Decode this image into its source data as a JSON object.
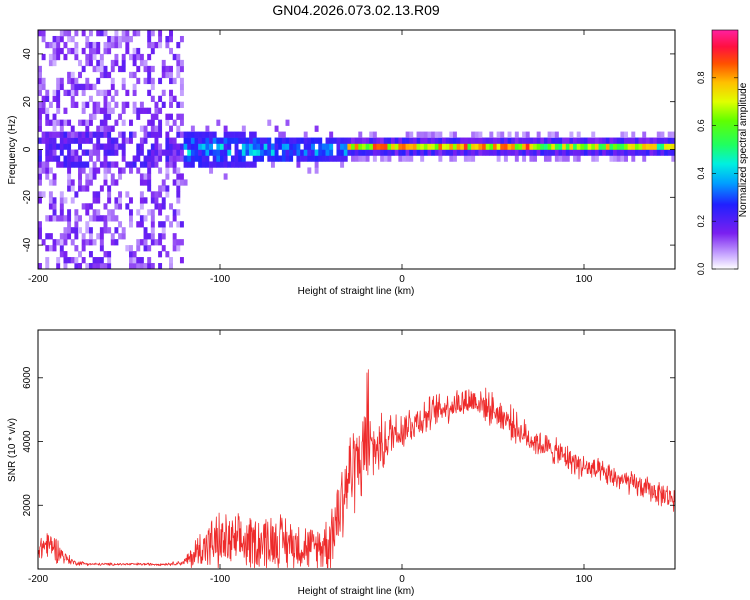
{
  "title": "GN04.2026.073.02.13.R09",
  "colors": {
    "line": "#ee2b2b",
    "background": "#ffffff",
    "spectrum_low": "#d9bfff",
    "spectrum_mid": "#3b38e0",
    "spectrum_high": "#ff1a40"
  },
  "chart_data": [
    {
      "type": "heatmap",
      "name": "spectrogram",
      "xlabel": "Height of straight line (km)",
      "ylabel": "Frequency (Hz)",
      "xlim": [
        -200,
        150
      ],
      "ylim": [
        -50,
        50
      ],
      "xticks": [
        "-200",
        "-100",
        "0",
        "100"
      ],
      "yticks": [
        "-40",
        "-20",
        "0",
        "20",
        "40"
      ],
      "grid": false,
      "regions": [
        {
          "x_range": [
            -200,
            -120
          ],
          "freq_spread": 50,
          "amplitude": 0.1,
          "description": "diffuse noise"
        },
        {
          "x_range": [
            -120,
            -30
          ],
          "freq_spread": 8,
          "amplitude": 0.3
        },
        {
          "x_range": [
            -30,
            150
          ],
          "freq_spread": 2,
          "amplitude": 0.8
        }
      ],
      "colorbar": {
        "label": "Normalized spectral amplitude",
        "range": [
          0,
          1
        ],
        "ticks": [
          "0.0",
          "0.2",
          "0.4",
          "0.6",
          "0.8"
        ],
        "ticks_values": [
          0,
          0.2,
          0.4,
          0.6,
          0.8
        ]
      }
    },
    {
      "type": "line",
      "name": "snr",
      "xlabel": "Height of straight line (km)",
      "ylabel": "SNR (10 * v/v)",
      "xlim": [
        -200,
        150
      ],
      "ylim": [
        0,
        7500
      ],
      "xticks": [
        "-200",
        "-100",
        "0",
        "100"
      ],
      "yticks": [
        "2000",
        "4000",
        "6000"
      ],
      "grid": false,
      "series": [
        {
          "name": "SNR",
          "x": [
            -200,
            -195,
            -190,
            -185,
            -180,
            -170,
            -160,
            -150,
            -140,
            -130,
            -120,
            -115,
            -110,
            -100,
            -90,
            -80,
            -70,
            -60,
            -50,
            -45,
            -40,
            -35,
            -30,
            -25,
            -20,
            -15,
            -10,
            -5,
            0,
            10,
            20,
            30,
            40,
            50,
            60,
            65,
            70,
            80,
            90,
            100,
            110,
            120,
            130,
            140,
            150
          ],
          "values": [
            600,
            800,
            650,
            350,
            200,
            150,
            150,
            150,
            150,
            150,
            200,
            400,
            700,
            850,
            800,
            850,
            900,
            800,
            650,
            700,
            900,
            1800,
            2800,
            3400,
            3600,
            3800,
            3900,
            4300,
            4400,
            4700,
            5000,
            5200,
            5300,
            5000,
            4600,
            4300,
            4100,
            3800,
            3500,
            3200,
            3000,
            2800,
            2600,
            2400,
            2200
          ],
          "noise": [
            500,
            600,
            500,
            250,
            100,
            50,
            50,
            50,
            50,
            50,
            100,
            500,
            800,
            1100,
            1000,
            1100,
            1100,
            1000,
            800,
            900,
            1200,
            1800,
            1800,
            1700,
            1600,
            1200,
            1000,
            900,
            800,
            700,
            600,
            600,
            600,
            600,
            600,
            550,
            550,
            500,
            500,
            500,
            450,
            450,
            450,
            450,
            450
          ]
        }
      ]
    }
  ]
}
